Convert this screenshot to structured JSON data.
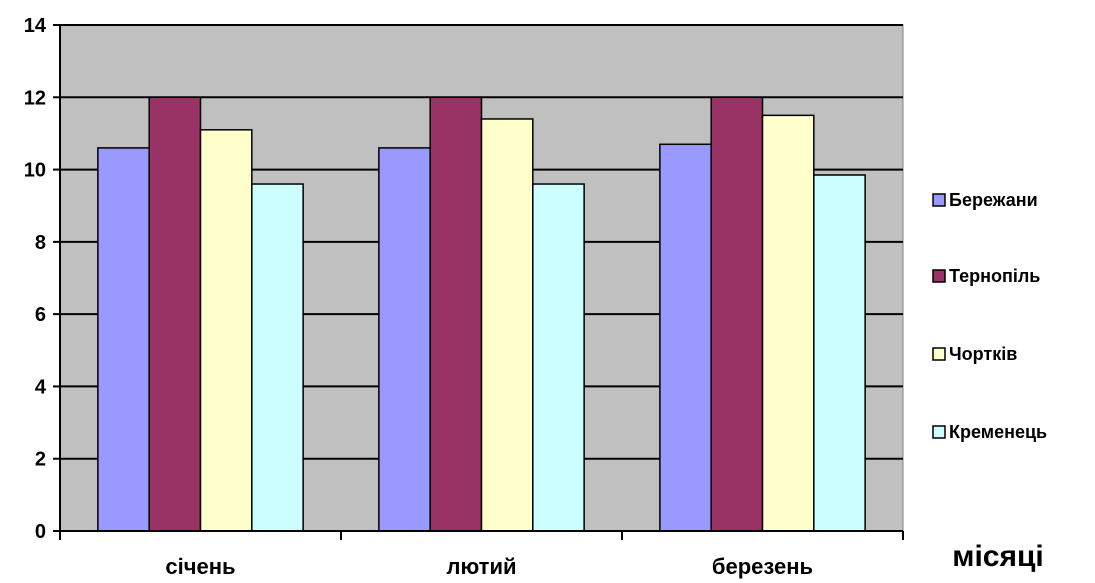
{
  "chart_data": {
    "type": "bar",
    "title": "",
    "xlabel": "місяці",
    "ylabel": "",
    "categories": [
      "січень",
      "лютий",
      "березень"
    ],
    "series": [
      {
        "name": "Бережани",
        "color": "#9999ff",
        "values": [
          10.6,
          10.6,
          10.7
        ]
      },
      {
        "name": "Тернопіль",
        "color": "#993366",
        "values": [
          12.0,
          12.0,
          12.0
        ]
      },
      {
        "name": "Чортків",
        "color": "#ffffcc",
        "values": [
          11.1,
          11.4,
          11.5
        ]
      },
      {
        "name": "Кременець",
        "color": "#ccffff",
        "values": [
          9.6,
          9.6,
          9.85
        ]
      }
    ],
    "ylim": [
      0,
      14
    ],
    "yticks": [
      "0",
      "2",
      "4",
      "6",
      "8",
      "10",
      "12",
      "14"
    ],
    "grid": true,
    "plot_background": "#c0c0c0",
    "legend_position": "right"
  }
}
